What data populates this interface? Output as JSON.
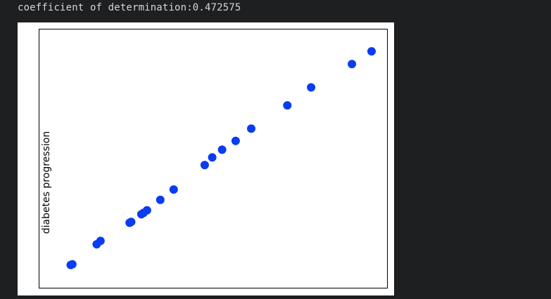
{
  "output": {
    "text": "coefficient of determination:0.472575"
  },
  "colors": {
    "background": "#1e1f21",
    "figure": "#ffffff",
    "points": "#0a3cf0",
    "text": "#d6d6d6"
  },
  "chart_data": {
    "type": "scatter",
    "title": "",
    "xlabel": "",
    "ylabel": "diabetes progression",
    "xticks": [],
    "yticks": [],
    "grid": false,
    "xlim": [
      0,
      1
    ],
    "ylim": [
      0,
      1
    ],
    "series": [
      {
        "points": [
          [
            0.05,
            0.046
          ],
          [
            0.055,
            0.049
          ],
          [
            0.132,
            0.134
          ],
          [
            0.144,
            0.148
          ],
          [
            0.236,
            0.225
          ],
          [
            0.241,
            0.229
          ],
          [
            0.273,
            0.261
          ],
          [
            0.28,
            0.267
          ],
          [
            0.291,
            0.278
          ],
          [
            0.333,
            0.322
          ],
          [
            0.375,
            0.366
          ],
          [
            0.473,
            0.47
          ],
          [
            0.497,
            0.502
          ],
          [
            0.528,
            0.535
          ],
          [
            0.571,
            0.572
          ],
          [
            0.62,
            0.624
          ],
          [
            0.734,
            0.723
          ],
          [
            0.809,
            0.799
          ],
          [
            0.938,
            0.898
          ],
          [
            1.0,
            0.952
          ]
        ]
      }
    ]
  }
}
